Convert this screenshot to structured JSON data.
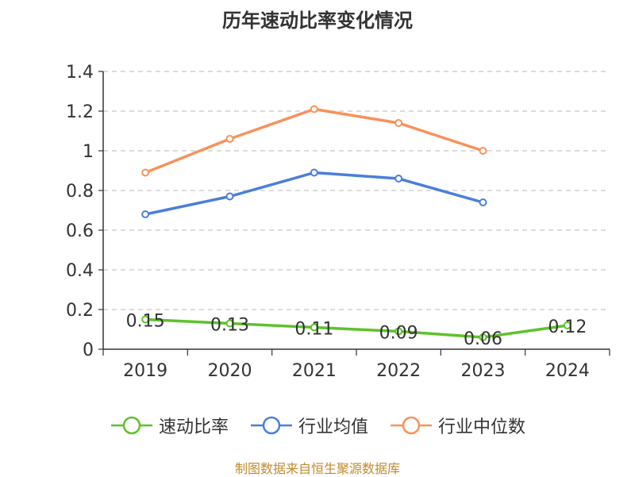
{
  "chart_data": {
    "type": "line",
    "title": "历年速动比率变化情况",
    "categories": [
      "2019",
      "2020",
      "2021",
      "2022",
      "2023",
      "2024"
    ],
    "ylim": [
      0,
      1.4
    ],
    "yticks": [
      "0",
      "0.2",
      "0.4",
      "0.6",
      "0.8",
      "1",
      "1.2",
      "1.4"
    ],
    "ytick_values": [
      0,
      0.2,
      0.4,
      0.6,
      0.8,
      1.0,
      1.2,
      1.4
    ],
    "grid": true,
    "legend_position": "bottom",
    "series": [
      {
        "name": "速动比率",
        "color": "#5ec22a",
        "values": [
          0.15,
          0.13,
          0.11,
          0.09,
          0.06,
          0.12
        ],
        "labels": [
          "0.15",
          "0.13",
          "0.11",
          "0.09",
          "0.06",
          "0.12"
        ]
      },
      {
        "name": "行业均值",
        "color": "#4a7fd9",
        "values": [
          0.68,
          0.77,
          0.89,
          0.86,
          0.74,
          null
        ]
      },
      {
        "name": "行业中位数",
        "color": "#f7925c",
        "values": [
          0.89,
          1.06,
          1.21,
          1.14,
          1.0,
          null
        ]
      }
    ]
  },
  "source_note": "制图数据来自恒生聚源数据库"
}
